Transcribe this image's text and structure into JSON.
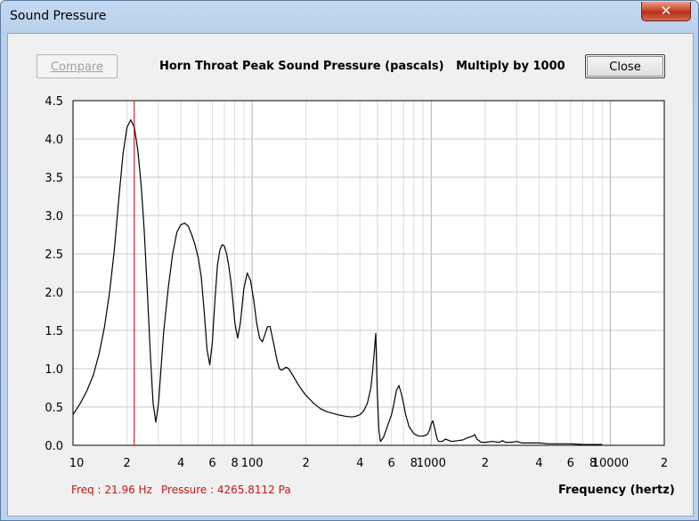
{
  "window": {
    "title": "Sound Pressure",
    "close_glyph": "✕"
  },
  "toolbar": {
    "compare_label": "Compare",
    "close_label": "Close"
  },
  "readout": {
    "freq": "Freq : 21.96 Hz",
    "pressure": "Pressure : 4265.8112 Pa"
  },
  "chart_data": {
    "type": "line",
    "title": "Horn Throat Peak Sound Pressure (pascals)   Multiply by 1000",
    "xlabel": "Frequency (hertz)",
    "ylabel": "",
    "x_scale": "log",
    "xlim": [
      10,
      20000
    ],
    "ylim": [
      0,
      4.5
    ],
    "grid": true,
    "y_ticks": [
      "0.0",
      "0.5",
      "1.0",
      "1.5",
      "2.0",
      "2.5",
      "3.0",
      "3.5",
      "4.0",
      "4.5"
    ],
    "x_tick_labels": [
      {
        "value": 10,
        "label": "10"
      },
      {
        "value": 20,
        "label": "2"
      },
      {
        "value": 40,
        "label": "4"
      },
      {
        "value": 60,
        "label": "6"
      },
      {
        "value": 80,
        "label": "8"
      },
      {
        "value": 100,
        "label": "100"
      },
      {
        "value": 200,
        "label": "2"
      },
      {
        "value": 400,
        "label": "4"
      },
      {
        "value": 600,
        "label": "6"
      },
      {
        "value": 800,
        "label": "8"
      },
      {
        "value": 1000,
        "label": "1000"
      },
      {
        "value": 2000,
        "label": "2"
      },
      {
        "value": 4000,
        "label": "4"
      },
      {
        "value": 6000,
        "label": "6"
      },
      {
        "value": 8000,
        "label": "8"
      },
      {
        "value": 10000,
        "label": "10000"
      },
      {
        "value": 20000,
        "label": "2"
      }
    ],
    "cursor_x": 21.96,
    "colors": {
      "line": "#000000",
      "cursor": "#cc0000",
      "grid": "#c8c8c8"
    },
    "series": [
      {
        "x": [
          10,
          11,
          12,
          13,
          14,
          15,
          16,
          17,
          18,
          19,
          20,
          21,
          22,
          23,
          24,
          25,
          26,
          27,
          28,
          29,
          30,
          31,
          32,
          34,
          36,
          38,
          40,
          42,
          44,
          46,
          48,
          50,
          52,
          54,
          56,
          58,
          60,
          62,
          64,
          66,
          68,
          70,
          72,
          74,
          76,
          78,
          80,
          83,
          86,
          90,
          94,
          98,
          102,
          106,
          110,
          114,
          118,
          122,
          126,
          130,
          134,
          138,
          142,
          146,
          150,
          155,
          160,
          170,
          180,
          190,
          200,
          210,
          220,
          240,
          260,
          280,
          300,
          330,
          360,
          380,
          400,
          420,
          440,
          460,
          470,
          480,
          490,
          500,
          510,
          520,
          540,
          560,
          580,
          600,
          620,
          640,
          660,
          680,
          700,
          720,
          750,
          800,
          850,
          900,
          950,
          980,
          1000,
          1020,
          1050,
          1080,
          1100,
          1150,
          1200,
          1300,
          1400,
          1500,
          1600,
          1700,
          1750,
          1800,
          1900,
          2000,
          2200,
          2400,
          2500,
          2600,
          2800,
          3000,
          3100,
          3200,
          3500,
          4000,
          4500,
          5000,
          6000,
          7000,
          8000,
          9000
        ],
        "y": [
          0.4,
          0.55,
          0.72,
          0.92,
          1.2,
          1.55,
          2.0,
          2.55,
          3.2,
          3.8,
          4.15,
          4.25,
          4.15,
          3.85,
          3.4,
          2.8,
          2.0,
          1.2,
          0.55,
          0.3,
          0.55,
          1.0,
          1.45,
          2.05,
          2.5,
          2.78,
          2.88,
          2.9,
          2.86,
          2.75,
          2.62,
          2.45,
          2.2,
          1.75,
          1.25,
          1.05,
          1.35,
          1.9,
          2.35,
          2.55,
          2.62,
          2.6,
          2.5,
          2.35,
          2.15,
          1.9,
          1.6,
          1.4,
          1.6,
          2.05,
          2.25,
          2.15,
          1.9,
          1.6,
          1.4,
          1.35,
          1.45,
          1.55,
          1.55,
          1.4,
          1.25,
          1.1,
          1.0,
          0.98,
          1.0,
          1.02,
          1.0,
          0.9,
          0.8,
          0.72,
          0.65,
          0.6,
          0.55,
          0.48,
          0.44,
          0.42,
          0.4,
          0.38,
          0.37,
          0.38,
          0.4,
          0.45,
          0.55,
          0.75,
          0.95,
          1.2,
          1.46,
          0.7,
          0.2,
          0.05,
          0.1,
          0.2,
          0.3,
          0.4,
          0.55,
          0.72,
          0.78,
          0.68,
          0.55,
          0.4,
          0.25,
          0.15,
          0.12,
          0.12,
          0.14,
          0.2,
          0.28,
          0.32,
          0.2,
          0.08,
          0.05,
          0.05,
          0.08,
          0.05,
          0.06,
          0.07,
          0.1,
          0.12,
          0.14,
          0.08,
          0.04,
          0.04,
          0.05,
          0.04,
          0.06,
          0.04,
          0.04,
          0.05,
          0.04,
          0.03,
          0.03,
          0.03,
          0.02,
          0.02,
          0.02,
          0.01,
          0.01,
          0.01
        ]
      }
    ]
  }
}
